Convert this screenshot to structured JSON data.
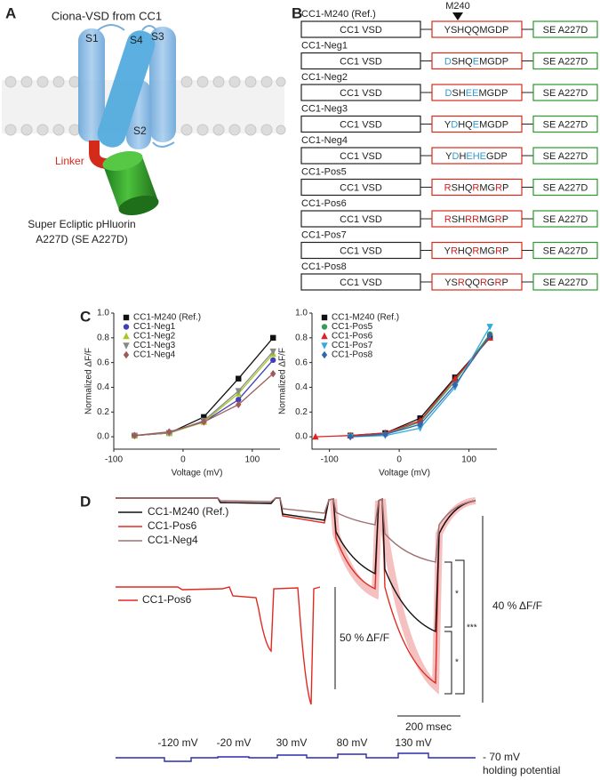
{
  "panel_labels": [
    "A",
    "B",
    "C",
    "D"
  ],
  "panel_a": {
    "title": "Ciona-VSD from CC1",
    "segments": [
      "S1",
      "S4",
      "S3",
      "S2"
    ],
    "linker": "Linker",
    "fp_label": [
      "Super Ecliptic pHluorin",
      "A227D (SE A227D)"
    ]
  },
  "panel_b": {
    "marker": "M240",
    "constructs": [
      {
        "name": "CC1-M240 (Ref.)",
        "vsd": "CC1 VSD",
        "fp": "SE A227D",
        "linker": [
          {
            "text": "YSHQQMGDP",
            "color": "#222222"
          }
        ]
      },
      {
        "name": "CC1-Neg1",
        "vsd": "CC1 VSD",
        "fp": "SE A227D",
        "linker": [
          {
            "text": "D",
            "color": "#3399cc"
          },
          {
            "text": "SHQ",
            "color": "#222222"
          },
          {
            "text": "E",
            "color": "#3399cc"
          },
          {
            "text": "MGDP",
            "color": "#222222"
          }
        ]
      },
      {
        "name": "CC1-Neg2",
        "vsd": "CC1 VSD",
        "fp": "SE A227D",
        "linker": [
          {
            "text": "D",
            "color": "#3399cc"
          },
          {
            "text": "SH",
            "color": "#222222"
          },
          {
            "text": "EE",
            "color": "#3399cc"
          },
          {
            "text": "MGDP",
            "color": "#222222"
          }
        ]
      },
      {
        "name": "CC1-Neg3",
        "vsd": "CC1 VSD",
        "fp": "SE A227D",
        "linker": [
          {
            "text": "Y",
            "color": "#222222"
          },
          {
            "text": "D",
            "color": "#3399cc"
          },
          {
            "text": "HQ",
            "color": "#222222"
          },
          {
            "text": "E",
            "color": "#3399cc"
          },
          {
            "text": "MGDP",
            "color": "#222222"
          }
        ]
      },
      {
        "name": "CC1-Neg4",
        "vsd": "CC1 VSD",
        "fp": "SE A227D",
        "linker": [
          {
            "text": "Y",
            "color": "#222222"
          },
          {
            "text": "D",
            "color": "#3399cc"
          },
          {
            "text": "H",
            "color": "#222222"
          },
          {
            "text": "EHE",
            "color": "#3399cc"
          },
          {
            "text": "GDP",
            "color": "#222222"
          }
        ]
      },
      {
        "name": "CC1-Pos5",
        "vsd": "CC1 VSD",
        "fp": "SE A227D",
        "linker": [
          {
            "text": "R",
            "color": "#cc2222"
          },
          {
            "text": "SHQ",
            "color": "#222222"
          },
          {
            "text": "R",
            "color": "#cc2222"
          },
          {
            "text": "MG",
            "color": "#222222"
          },
          {
            "text": "R",
            "color": "#cc2222"
          },
          {
            "text": "P",
            "color": "#222222"
          }
        ]
      },
      {
        "name": "CC1-Pos6",
        "vsd": "CC1 VSD",
        "fp": "SE A227D",
        "linker": [
          {
            "text": "R",
            "color": "#cc2222"
          },
          {
            "text": "SH",
            "color": "#222222"
          },
          {
            "text": "RR",
            "color": "#cc2222"
          },
          {
            "text": "MG",
            "color": "#222222"
          },
          {
            "text": "R",
            "color": "#cc2222"
          },
          {
            "text": "P",
            "color": "#222222"
          }
        ]
      },
      {
        "name": "CC1-Pos7",
        "vsd": "CC1 VSD",
        "fp": "SE A227D",
        "linker": [
          {
            "text": "Y",
            "color": "#222222"
          },
          {
            "text": "R",
            "color": "#cc2222"
          },
          {
            "text": "HQ",
            "color": "#222222"
          },
          {
            "text": "R",
            "color": "#cc2222"
          },
          {
            "text": "MG",
            "color": "#222222"
          },
          {
            "text": "R",
            "color": "#cc2222"
          },
          {
            "text": "P",
            "color": "#222222"
          }
        ]
      },
      {
        "name": "CC1-Pos8",
        "vsd": "CC1 VSD",
        "fp": "SE A227D",
        "linker": [
          {
            "text": "YS",
            "color": "#222222"
          },
          {
            "text": "R",
            "color": "#cc2222"
          },
          {
            "text": "QQ",
            "color": "#222222"
          },
          {
            "text": "R",
            "color": "#cc2222"
          },
          {
            "text": "G",
            "color": "#222222"
          },
          {
            "text": "R",
            "color": "#cc2222"
          },
          {
            "text": "P",
            "color": "#222222"
          }
        ]
      }
    ]
  },
  "chart_data": [
    {
      "type": "line",
      "x_label": "Voltage (mV)",
      "y_label": "Normalized ΔF/F",
      "legend": "upper left",
      "x": [
        -70,
        -20,
        30,
        80,
        130
      ],
      "xlim": [
        -100,
        140
      ],
      "xticks": [
        -100,
        0,
        100
      ],
      "ylim": [
        -0.1,
        1.0
      ],
      "yticks": [
        {
          "value": 0,
          "label": "0.0"
        },
        0.2,
        0.4,
        0.6,
        0.8,
        {
          "value": 1,
          "label": "1.0"
        }
      ],
      "series": [
        {
          "name": "CC1-M240 (Ref.)",
          "color": "#111111",
          "marker": "square",
          "values": [
            0.01,
            0.03,
            0.16,
            0.47,
            0.8
          ]
        },
        {
          "name": "CC1-Neg1",
          "color": "#3f3fb8",
          "marker": "circle",
          "values": [
            0.01,
            0.03,
            0.12,
            0.3,
            0.62
          ]
        },
        {
          "name": "CC1-Neg2",
          "color": "#a8c820",
          "marker": "triangle-up",
          "values": [
            0.01,
            0.03,
            0.12,
            0.35,
            0.67
          ]
        },
        {
          "name": "CC1-Neg3",
          "color": "#888888",
          "marker": "triangle-down",
          "values": [
            0.01,
            0.03,
            0.13,
            0.37,
            0.69
          ]
        },
        {
          "name": "CC1-Neg4",
          "color": "#a05a5a",
          "marker": "diamond",
          "values": [
            0.01,
            0.04,
            0.12,
            0.26,
            0.51
          ]
        }
      ]
    },
    {
      "type": "line",
      "x_label": "Voltage (mV)",
      "y_label": "Normalized ΔF/F",
      "legend": "upper left",
      "x": [
        -120,
        -70,
        -20,
        30,
        80,
        130
      ],
      "xlim": [
        -125,
        140
      ],
      "xticks": [
        -100,
        0,
        100
      ],
      "ylim": [
        -0.1,
        1.0
      ],
      "yticks": [
        {
          "value": 0,
          "label": "0.0"
        },
        0.2,
        0.4,
        0.6,
        0.8,
        {
          "value": 1,
          "label": "1.0"
        }
      ],
      "series": [
        {
          "name": "CC1-M240 (Ref.)",
          "color": "#111111",
          "marker": "square",
          "values": [
            null,
            0.01,
            0.03,
            0.15,
            0.48,
            0.8
          ]
        },
        {
          "name": "CC1-Pos5",
          "color": "#3a9a5a",
          "marker": "circle",
          "values": [
            null,
            0.01,
            0.02,
            0.12,
            0.45,
            0.83
          ]
        },
        {
          "name": "CC1-Pos6",
          "color": "#dd2222",
          "marker": "triangle-up",
          "values": [
            0.0,
            0.01,
            0.03,
            0.13,
            0.47,
            0.8
          ]
        },
        {
          "name": "CC1-Pos7",
          "color": "#33aadd",
          "marker": "triangle-down",
          "values": [
            null,
            0.0,
            0.01,
            0.07,
            0.4,
            0.89
          ]
        },
        {
          "name": "CC1-Pos8",
          "color": "#3366aa",
          "marker": "diamond",
          "values": [
            null,
            0.0,
            0.02,
            0.1,
            0.42,
            0.82
          ]
        }
      ]
    }
  ],
  "panel_d": {
    "legend_top": [
      "CC1-M240 (Ref.)",
      "CC1-Pos6",
      "CC1-Neg4"
    ],
    "legend_bottom": "CC1-Pos6",
    "scale_left": "50 % ΔF/F",
    "scale_right": "40 % ΔF/F",
    "time_scale": "200 msec",
    "significance": [
      "*",
      "*",
      "***"
    ],
    "steps": [
      "-120 mV",
      "-20 mV",
      "30 mV",
      "80 mV",
      "130 mV"
    ],
    "holding": "- 70 mV",
    "holding_label": "holding potential"
  }
}
